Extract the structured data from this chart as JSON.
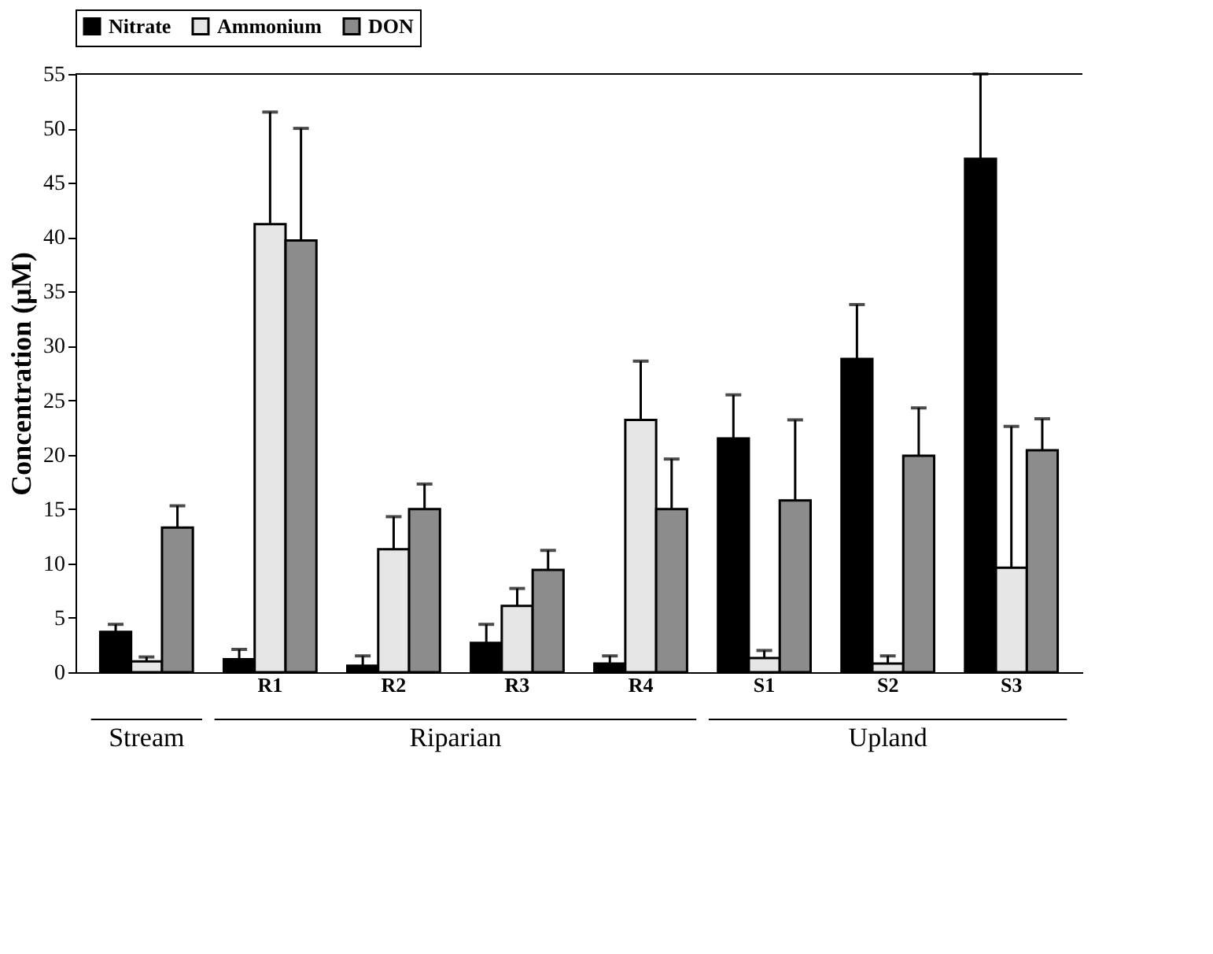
{
  "chart_data": {
    "type": "bar",
    "ylabel": "Concentration (μM)",
    "categories": [
      null,
      "R1",
      "R2",
      "R3",
      "R4",
      "S1",
      "S2",
      "S3"
    ],
    "series": [
      {
        "name": "Nitrate",
        "color": "#000000",
        "values": [
          3.7,
          1.2,
          0.6,
          2.7,
          0.8,
          21.5,
          28.8,
          47.2
        ],
        "errors": [
          [
            3.7,
            4.4
          ],
          [
            1.2,
            2.1
          ],
          [
            0.6,
            1.5
          ],
          [
            2.7,
            4.4
          ],
          [
            0.8,
            1.5
          ],
          [
            21.5,
            25.5
          ],
          [
            28.8,
            33.8
          ],
          [
            47.2,
            55
          ]
        ]
      },
      {
        "name": "Ammonium",
        "color": "#e6e6e6",
        "values": [
          1.0,
          41.2,
          11.3,
          6.1,
          23.2,
          1.3,
          0.8,
          9.6
        ],
        "errors": [
          [
            1.0,
            1.4
          ],
          [
            41.2,
            51.5
          ],
          [
            11.3,
            14.3
          ],
          [
            6.1,
            7.7
          ],
          [
            23.2,
            28.6
          ],
          [
            1.3,
            2.0
          ],
          [
            0.8,
            1.5
          ],
          [
            9.6,
            22.6
          ]
        ]
      },
      {
        "name": "DON",
        "color": "#8c8c8c",
        "values": [
          13.3,
          39.7,
          15.0,
          9.4,
          15.0,
          15.8,
          19.9,
          20.4
        ],
        "errors": [
          [
            13.3,
            15.3
          ],
          [
            39.7,
            50.0
          ],
          [
            15.0,
            17.3
          ],
          [
            9.4,
            11.2
          ],
          [
            15.0,
            19.6
          ],
          [
            15.8,
            23.2
          ],
          [
            19.9,
            24.3
          ],
          [
            20.4,
            23.3
          ]
        ]
      }
    ],
    "annotations": [
      "Stream",
      "Riparian",
      "Upland"
    ],
    "ylim": [
      0,
      55
    ],
    "yticks": [
      0,
      5,
      10,
      15,
      20,
      25,
      30,
      35,
      40,
      45,
      50,
      55
    ],
    "grid": false,
    "legend": "top"
  }
}
